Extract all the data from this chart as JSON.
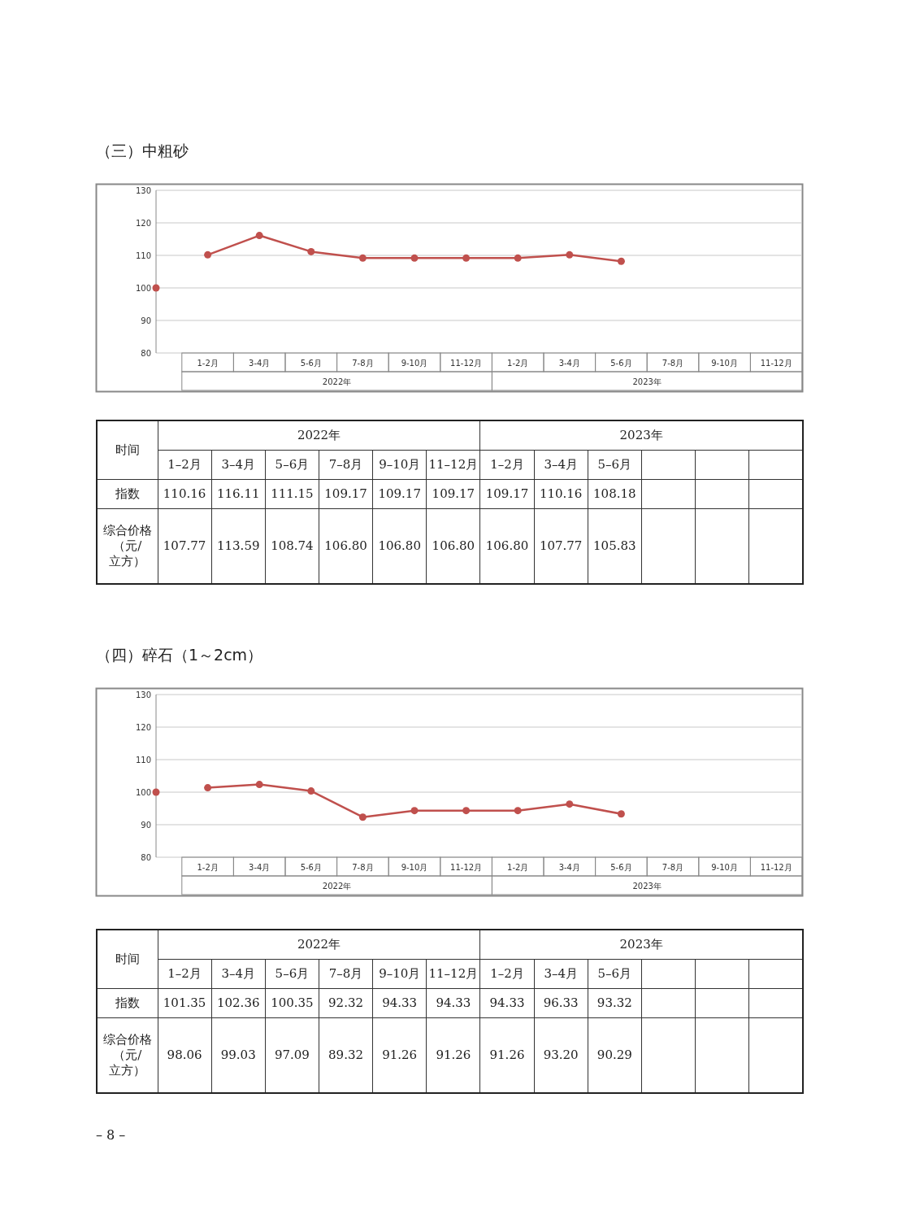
{
  "chart_data": [
    {
      "type": "line",
      "title": "（三）中粗砂",
      "categories": [
        null,
        "1-2月",
        "3-4月",
        "5-6月",
        "7-8月",
        "9-10月",
        "11-12月",
        "1-2月",
        "3-4月",
        "5-6月",
        "7-8月",
        "9-10月",
        "11-12月"
      ],
      "annotations": [
        "2022年",
        "2023年"
      ],
      "ylim": [
        80,
        130
      ],
      "yticks": [
        80,
        90,
        100,
        110,
        120,
        130
      ],
      "grid": "y",
      "marker": "circle",
      "series": [
        {
          "color": "#c0504d",
          "values": [
            null,
            110.16,
            116.11,
            111.15,
            109.17,
            109.17,
            109.17,
            109.17,
            110.16,
            108.18,
            null,
            null,
            null
          ]
        },
        {
          "type": "scatter",
          "color": "#c0504d",
          "values": [
            100,
            null,
            null,
            null,
            null,
            null,
            null,
            null,
            null,
            null,
            null,
            null,
            null
          ]
        }
      ]
    },
    {
      "type": "other",
      "xlabel": "时间",
      "annotations": [
        "2022年",
        "2023年"
      ],
      "categories": [
        "1–2月",
        "3–4月",
        "5–6月",
        "7–8月",
        "9–10月",
        "11–12月",
        "1–2月",
        "3–4月",
        "5–6月",
        null,
        null,
        null
      ],
      "y_categories": [
        "指数",
        "综合价格（元/立方）"
      ],
      "cell_labels": [
        [
          "110.16",
          "116.11",
          "111.15",
          "109.17",
          "109.17",
          "109.17",
          "109.17",
          "110.16",
          "108.18",
          null,
          null,
          null
        ],
        [
          "107.77",
          "113.59",
          "108.74",
          "106.80",
          "106.80",
          "106.80",
          "106.80",
          "107.77",
          "105.83",
          null,
          null,
          null
        ]
      ]
    },
    {
      "type": "line",
      "title": "（四）碎石（1～2cm）",
      "categories": [
        null,
        "1-2月",
        "3-4月",
        "5-6月",
        "7-8月",
        "9-10月",
        "11-12月",
        "1-2月",
        "3-4月",
        "5-6月",
        "7-8月",
        "9-10月",
        "11-12月"
      ],
      "annotations": [
        "2022年",
        "2023年"
      ],
      "ylim": [
        80,
        130
      ],
      "yticks": [
        80,
        90,
        100,
        110,
        120,
        130
      ],
      "grid": "y",
      "marker": "circle",
      "series": [
        {
          "color": "#c0504d",
          "values": [
            null,
            101.35,
            102.36,
            100.35,
            92.32,
            94.33,
            94.33,
            94.33,
            96.33,
            93.32,
            null,
            null,
            null
          ]
        },
        {
          "type": "scatter",
          "color": "#c0504d",
          "values": [
            100,
            null,
            null,
            null,
            null,
            null,
            null,
            null,
            null,
            null,
            null,
            null,
            null
          ]
        }
      ]
    },
    {
      "type": "other",
      "xlabel": "时间",
      "annotations": [
        "2022年",
        "2023年"
      ],
      "categories": [
        "1–2月",
        "3–4月",
        "5–6月",
        "7–8月",
        "9–10月",
        "11–12月",
        "1–2月",
        "3–4月",
        "5–6月",
        null,
        null,
        null
      ],
      "y_categories": [
        "指数",
        "综合价格（元/立方）"
      ],
      "cell_labels": [
        [
          "101.35",
          "102.36",
          "100.35",
          "92.32",
          "94.33",
          "94.33",
          "94.33",
          "96.33",
          "93.32",
          null,
          null,
          null
        ],
        [
          "98.06",
          "99.03",
          "97.09",
          "89.32",
          "91.26",
          "91.26",
          "91.26",
          "93.20",
          "90.29",
          null,
          null,
          null
        ]
      ]
    },
    {
      "type": "other",
      "annotations": [
        "– 8 –"
      ]
    }
  ]
}
